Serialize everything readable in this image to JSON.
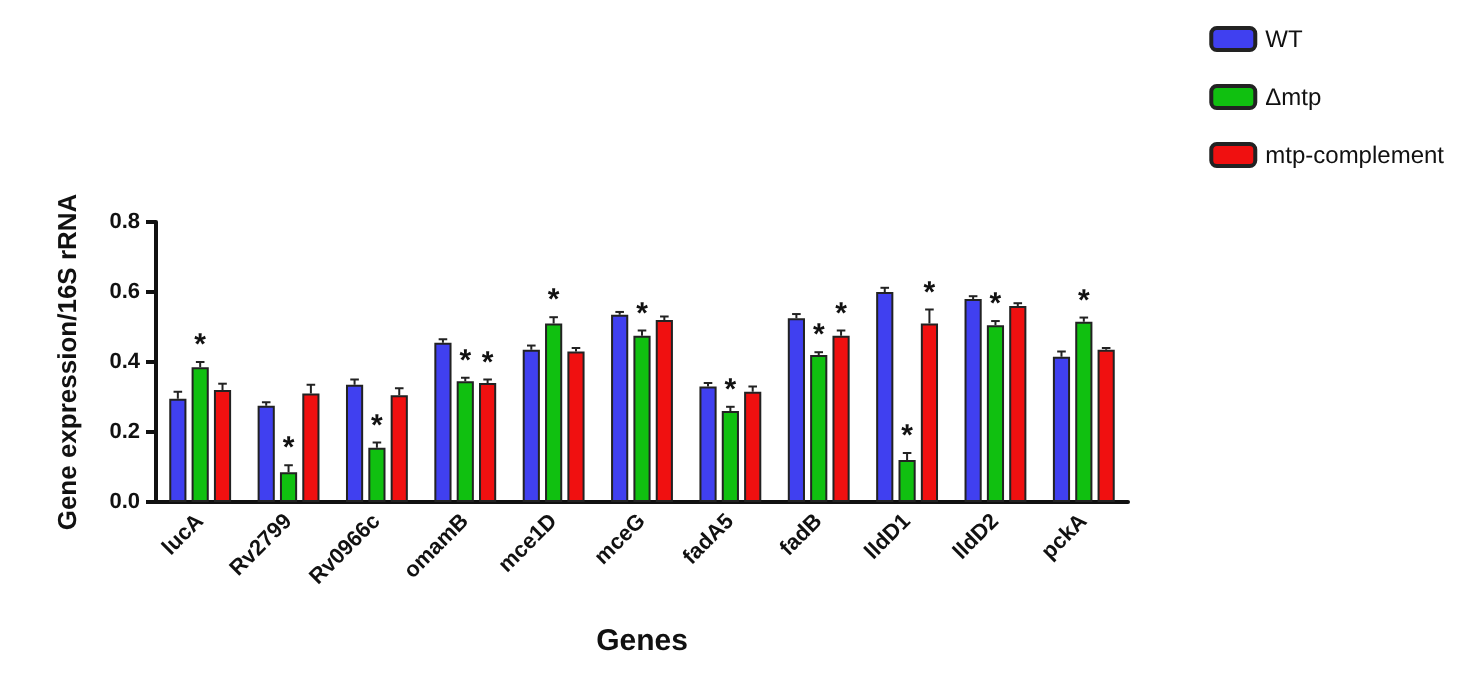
{
  "chart_data": {
    "type": "bar",
    "xlabel": "Genes",
    "ylabel": "Gene expression/16S rRNA",
    "categories": [
      "lucA",
      "Rv2799",
      "Rv0966c",
      "omamB",
      "mce1D",
      "mceG",
      "fadA5",
      "fadB",
      "lldD1",
      "lldD2",
      "pckA"
    ],
    "series": [
      {
        "name": "WT",
        "color": "#4040f0",
        "values": [
          0.295,
          0.275,
          0.335,
          0.455,
          0.435,
          0.535,
          0.33,
          0.525,
          0.6,
          0.58,
          0.415
        ],
        "errors": [
          0.02,
          0.01,
          0.015,
          0.01,
          0.012,
          0.008,
          0.01,
          0.012,
          0.012,
          0.008,
          0.015
        ],
        "value_labels": [
          null,
          null,
          null,
          null,
          null,
          null,
          null,
          null,
          null,
          null,
          null
        ]
      },
      {
        "name": "Δmtp",
        "color": "#10c010",
        "values": [
          0.385,
          0.085,
          0.155,
          0.345,
          0.51,
          0.475,
          0.26,
          0.42,
          0.12,
          0.505,
          0.515
        ],
        "errors": [
          0.015,
          0.02,
          0.015,
          0.01,
          0.018,
          0.015,
          0.012,
          0.008,
          0.02,
          0.012,
          0.012
        ],
        "value_labels": [
          "*",
          "*",
          "*",
          "*",
          "*",
          "*",
          "*",
          "*",
          "*",
          "*",
          "*"
        ]
      },
      {
        "name": "mtp-complement",
        "color": "#f01010",
        "values": [
          0.32,
          0.31,
          0.305,
          0.34,
          0.43,
          0.52,
          0.315,
          0.475,
          0.51,
          0.56,
          0.435
        ],
        "errors": [
          0.018,
          0.025,
          0.02,
          0.01,
          0.01,
          0.01,
          0.015,
          0.015,
          0.04,
          0.008,
          0.005
        ],
        "value_labels": [
          null,
          null,
          null,
          "*",
          null,
          null,
          null,
          "*",
          "*",
          null,
          null
        ]
      }
    ],
    "ylim": [
      0,
      0.8
    ],
    "yticks": [
      {
        "value": 0,
        "label": "0.0"
      },
      {
        "value": 0.2,
        "label": "0.2"
      },
      {
        "value": 0.4,
        "label": "0.4"
      },
      {
        "value": 0.6,
        "label": "0.6"
      },
      {
        "value": 0.8,
        "label": "0.8"
      }
    ],
    "grid": false,
    "legend": "top right"
  }
}
